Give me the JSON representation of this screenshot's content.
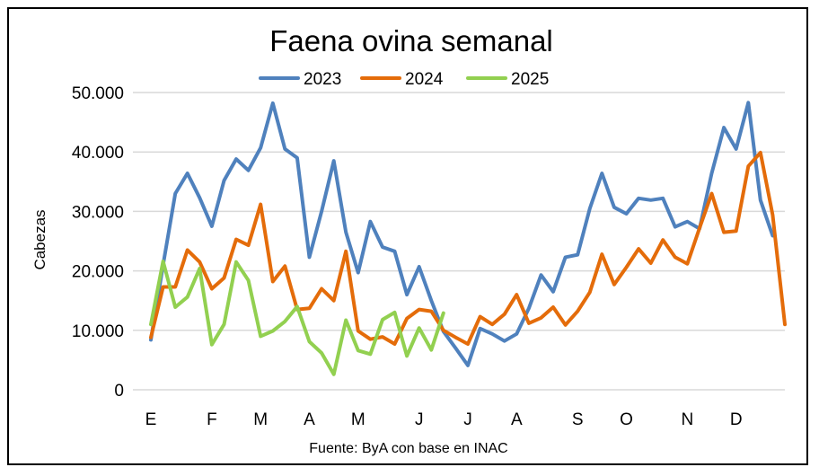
{
  "chart_data": {
    "type": "line",
    "title": "Faena ovina semanal",
    "ylabel": "Cabezas",
    "xlabel": "",
    "source": "Fuente: ByA con base en INAC",
    "ylim": [
      0,
      50000
    ],
    "yticks": [
      0,
      10000,
      20000,
      30000,
      40000,
      50000
    ],
    "ytick_labels": [
      "0",
      "10.000",
      "20.000",
      "30.000",
      "40.000",
      "50.000"
    ],
    "x_unit": "week",
    "xlim": [
      1,
      53
    ],
    "xticks": [
      {
        "label": "E",
        "week": 1
      },
      {
        "label": "F",
        "week": 6
      },
      {
        "label": "M",
        "week": 10
      },
      {
        "label": "A",
        "week": 14
      },
      {
        "label": "M",
        "week": 18
      },
      {
        "label": "J",
        "week": 23
      },
      {
        "label": "J",
        "week": 27
      },
      {
        "label": "A",
        "week": 31
      },
      {
        "label": "S",
        "week": 36
      },
      {
        "label": "O",
        "week": 40
      },
      {
        "label": "N",
        "week": 45
      },
      {
        "label": "D",
        "week": 49
      }
    ],
    "grid": true,
    "legend_position": "top",
    "series": [
      {
        "name": "2023",
        "color": "#4f81bd",
        "values": [
          8400,
          21000,
          33000,
          36400,
          32300,
          27500,
          35200,
          38800,
          36900,
          40700,
          48200,
          40500,
          39000,
          22300,
          30000,
          38500,
          26500,
          19700,
          28300,
          24000,
          23300,
          16000,
          20700,
          15000,
          9800,
          7000,
          4100,
          10300,
          9400,
          8200,
          9400,
          13700,
          19300,
          16500,
          22300,
          22700,
          30500,
          36400,
          30700,
          29600,
          32200,
          31900,
          32200,
          27400,
          28300,
          27100,
          36400,
          44100,
          40500,
          48300,
          31900,
          25900
        ]
      },
      {
        "name": "2024",
        "color": "#e46c0a",
        "values": [
          8800,
          17300,
          17300,
          23500,
          21500,
          17000,
          18800,
          25300,
          24300,
          31200,
          18200,
          20800,
          13500,
          13700,
          17000,
          15000,
          23300,
          9900,
          8500,
          8900,
          7700,
          12000,
          13500,
          13200,
          10000,
          8800,
          7700,
          12300,
          11000,
          12700,
          16000,
          11200,
          12100,
          13900,
          10900,
          13200,
          16400,
          22800,
          17700,
          20600,
          23700,
          21300,
          25200,
          22300,
          21200,
          27200,
          33000,
          26500,
          26700,
          37600,
          39900,
          29400,
          11000
        ]
      },
      {
        "name": "2025",
        "color": "#92d050",
        "values": [
          11000,
          21600,
          13900,
          15600,
          20400,
          7600,
          11000,
          21500,
          18400,
          9000,
          9900,
          11500,
          14000,
          8100,
          6200,
          2600,
          11700,
          6600,
          6000,
          11800,
          13000,
          5700,
          10400,
          6700,
          12900
        ]
      }
    ]
  }
}
